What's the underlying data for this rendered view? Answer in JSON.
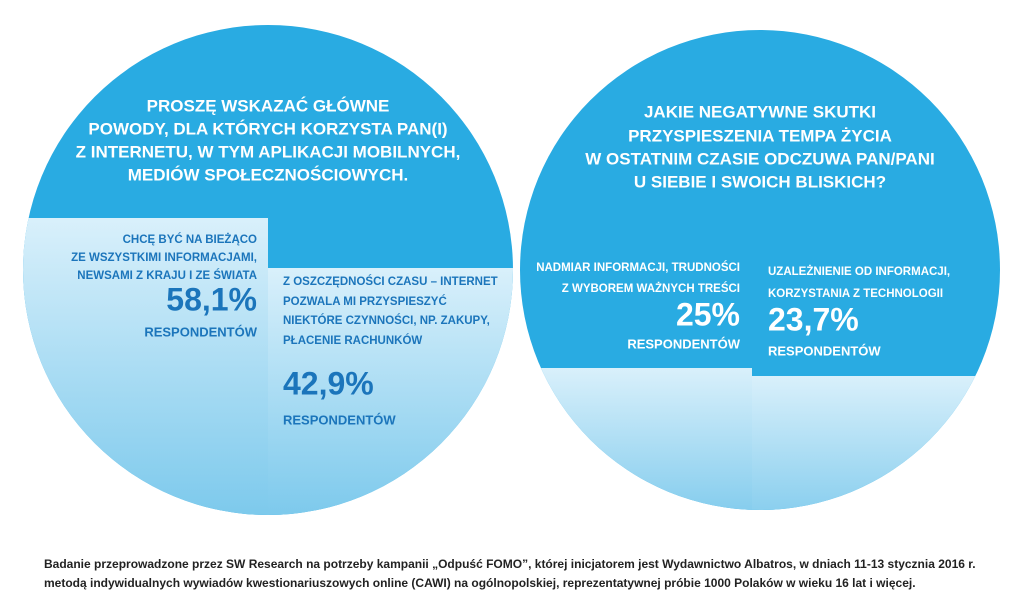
{
  "panels": [
    {
      "question": [
        "PROSZĘ WSKAZAĆ GŁÓWNE",
        "POWODY, DLA KTÓRYCH KORZYSTA PAN(I)",
        "Z INTERNETU, W TYM APLIKACJI MOBILNYCH,",
        "MEDIÓW SPOŁECZNOŚCIOWYCH."
      ],
      "answers": [
        {
          "label": [
            "CHCĘ BYĆ NA BIEŻĄCO",
            "ZE WSZYSTKIMI INFORMACJAMI,",
            "NEWSAMI Z KRAJU I ZE ŚWIATA"
          ],
          "value": "58,1%",
          "unit": "RESPONDENTÓW"
        },
        {
          "label": [
            "Z OSZCZĘDNOŚCI CZASU – INTERNET",
            "POZWALA MI PRZYSPIESZYĆ",
            "NIEKTÓRE CZYNNOŚCI, NP. ZAKUPY,",
            "PŁACENIE RACHUNKÓW"
          ],
          "value": "42,9%",
          "unit": "RESPONDENTÓW"
        }
      ]
    },
    {
      "question": [
        "JAKIE NEGATYWNE SKUTKI",
        "PRZYSPIESZENIA TEMPA ŻYCIA",
        "W OSTATNIM CZASIE ODCZUWA PAN/PANI",
        "U SIEBIE I SWOICH BLISKICH?"
      ],
      "answers": [
        {
          "label": [
            "NADMIAR INFORMACJI, TRUDNOŚCI",
            "Z WYBOREM WAŻNYCH TREŚCI"
          ],
          "value": "25%",
          "unit": "RESPONDENTÓW"
        },
        {
          "label": [
            "UZALEŻNIENIE OD INFORMACJI,",
            "KORZYSTANIA Z TECHNOLOGII"
          ],
          "value": "23,7%",
          "unit": "RESPONDENTÓW"
        }
      ]
    }
  ],
  "footnote": [
    "Badanie przeprowadzone przez SW Research na potrzeby kampanii „Odpuść FOMO”, której inicjatorem jest Wydawnictwo Albatros, w dniach 11-13 stycznia 2016 r.",
    "metodą indywidualnych wywiadów kwestionariuszowych online (CAWI) na ogólnopolskiej, reprezentatywnej próbie 1000 Polaków w wieku 16 lat i więcej."
  ]
}
